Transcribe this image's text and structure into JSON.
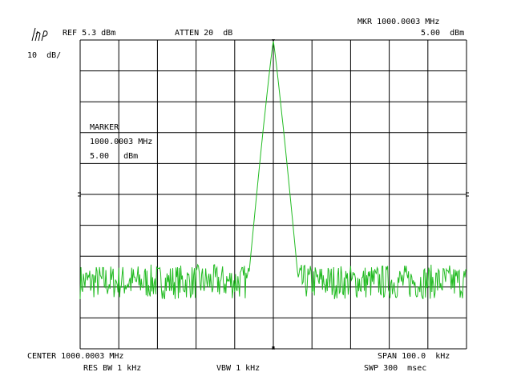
{
  "header": {
    "ref": "REF 5.3 dBm",
    "atten": "ATTEN 20  dB",
    "marker_freq": "MKR 1000.0003 MHz",
    "marker_level": "5.00  dBm",
    "scale": "10  dB/"
  },
  "marker_panel": {
    "title": "MARKER",
    "freq": "1000.0003 MHz",
    "level": "5.00   dBm"
  },
  "footer": {
    "center": "CENTER 1000.0003 MHz",
    "span": "SPAN 100.0  kHz",
    "res_bw": "RES BW 1 kHz",
    "vbw": "VBW 1 kHz",
    "swp": "SWP 300  msec"
  },
  "logo": "hp-logo",
  "colors": {
    "trace": "#22bb22",
    "grid": "#000000",
    "background": "#ffffff"
  },
  "chart_data": {
    "type": "line",
    "x_center_mhz": 1000.0003,
    "x_span_khz": 100.0,
    "ref_level_dbm": 5.3,
    "scale_db_per_div": 10,
    "x_divisions": 10,
    "y_divisions": 10,
    "noise_floor_dbm": -73,
    "noise_ptp_db": 7,
    "peak": {
      "freq_mhz": 1000.0003,
      "level_dbm": 5.0
    },
    "peak_width_khz": 13
  }
}
